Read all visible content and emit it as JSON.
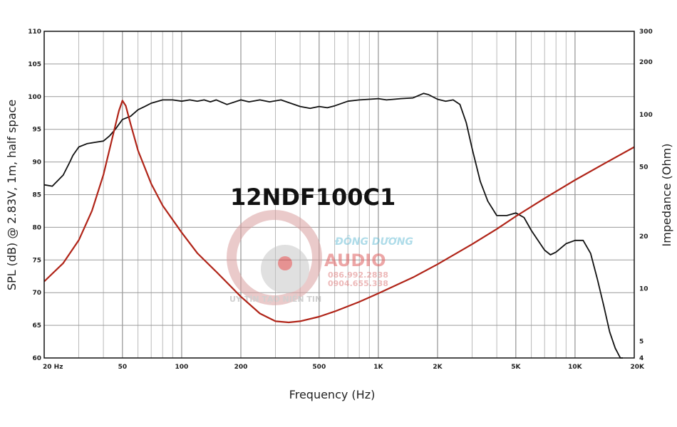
{
  "chart_data": {
    "type": "line",
    "title": "12NDF100C1",
    "xlabel": "Frequency (Hz)",
    "ylabel_left": "SPL (dB) @ 2.83V, 1m, half space",
    "ylabel_right": "Impedance (Ohm)",
    "x_scale": "log",
    "xlim": [
      20,
      20000
    ],
    "ylim_left": [
      60,
      110
    ],
    "ylim_right": [
      4,
      300
    ],
    "y_right_scale": "log",
    "grid": true,
    "x_ticks": [
      {
        "value": 20,
        "label": "20 Hz"
      },
      {
        "value": 50,
        "label": "50"
      },
      {
        "value": 100,
        "label": "100"
      },
      {
        "value": 200,
        "label": "200"
      },
      {
        "value": 500,
        "label": "500"
      },
      {
        "value": 1000,
        "label": "1K"
      },
      {
        "value": 2000,
        "label": "2K"
      },
      {
        "value": 5000,
        "label": "5K"
      },
      {
        "value": 10000,
        "label": "10K"
      },
      {
        "value": 20000,
        "label": "20K"
      }
    ],
    "y_left_ticks": [
      {
        "value": 110,
        "label": "110"
      },
      {
        "value": 105,
        "label": "105"
      },
      {
        "value": 100,
        "label": "100"
      },
      {
        "value": 95,
        "label": "95"
      },
      {
        "value": 90,
        "label": "90"
      },
      {
        "value": 85,
        "label": "85"
      },
      {
        "value": 80,
        "label": "80"
      },
      {
        "value": 75,
        "label": "75"
      },
      {
        "value": 70,
        "label": "70"
      },
      {
        "value": 65,
        "label": "65"
      },
      {
        "value": 60,
        "label": "60"
      }
    ],
    "y_right_ticks": [
      {
        "value": 300,
        "label": "300"
      },
      {
        "value": 200,
        "label": "200"
      },
      {
        "value": 100,
        "label": "100"
      },
      {
        "value": 50,
        "label": "50"
      },
      {
        "value": 20,
        "label": "20"
      },
      {
        "value": 10,
        "label": "10"
      },
      {
        "value": 5,
        "label": "5"
      },
      {
        "value": 4,
        "label": "4"
      }
    ],
    "series": [
      {
        "axis": "left",
        "color": "#111111",
        "x": [
          20,
          22,
          25,
          27,
          28,
          30,
          33,
          36,
          40,
          43,
          46,
          50,
          55,
          60,
          65,
          70,
          80,
          90,
          100,
          110,
          120,
          130,
          140,
          150,
          170,
          200,
          220,
          250,
          280,
          320,
          350,
          400,
          450,
          500,
          550,
          600,
          700,
          800,
          900,
          1000,
          1100,
          1200,
          1300,
          1500,
          1700,
          1800,
          2000,
          2200,
          2400,
          2600,
          2800,
          3000,
          3300,
          3600,
          4000,
          4500,
          5000,
          5500,
          6000,
          7000,
          7500,
          8000,
          9000,
          10000,
          11000,
          12000,
          13000,
          14000,
          15000,
          16000,
          17000,
          17500
        ],
        "values": [
          86.5,
          86.3,
          88,
          90,
          91,
          92.3,
          92.8,
          93,
          93.2,
          94,
          95,
          96.5,
          97,
          98,
          98.5,
          99,
          99.5,
          99.5,
          99.3,
          99.5,
          99.3,
          99.5,
          99.2,
          99.5,
          98.8,
          99.5,
          99.2,
          99.5,
          99.2,
          99.5,
          99.1,
          98.5,
          98.2,
          98.5,
          98.3,
          98.6,
          99.3,
          99.5,
          99.6,
          99.7,
          99.5,
          99.6,
          99.7,
          99.8,
          100.5,
          100.3,
          99.6,
          99.3,
          99.5,
          98.8,
          96,
          92,
          87,
          84,
          81.8,
          81.8,
          82.2,
          81.5,
          79.5,
          76.5,
          75.8,
          76.2,
          77.5,
          78,
          78,
          76,
          72,
          68,
          64,
          61.5,
          60,
          59.5
        ]
      },
      {
        "axis": "right",
        "color": "#b02418",
        "x": [
          20,
          25,
          30,
          35,
          40,
          45,
          48,
          50,
          52,
          55,
          60,
          70,
          80,
          100,
          120,
          150,
          200,
          250,
          300,
          350,
          400,
          500,
          600,
          800,
          1000,
          1500,
          2000,
          3000,
          4000,
          5000,
          7000,
          10000,
          14000,
          20000
        ],
        "values": [
          11,
          14,
          19,
          28,
          45,
          78,
          105,
          120,
          112,
          88,
          62,
          40,
          30,
          21,
          16,
          12.5,
          9,
          7.2,
          6.5,
          6.4,
          6.5,
          6.9,
          7.4,
          8.4,
          9.4,
          11.6,
          13.8,
          18,
          22,
          26,
          33,
          42,
          52,
          65
        ]
      }
    ]
  },
  "watermark": {
    "brand_top": "ĐÔNG DƯƠNG",
    "brand_main": "AUDIO",
    "phone1": "086.992.2838",
    "phone2": "0904.655.338",
    "slogan": "UY TÍN TẠO NIỀN TIN"
  }
}
